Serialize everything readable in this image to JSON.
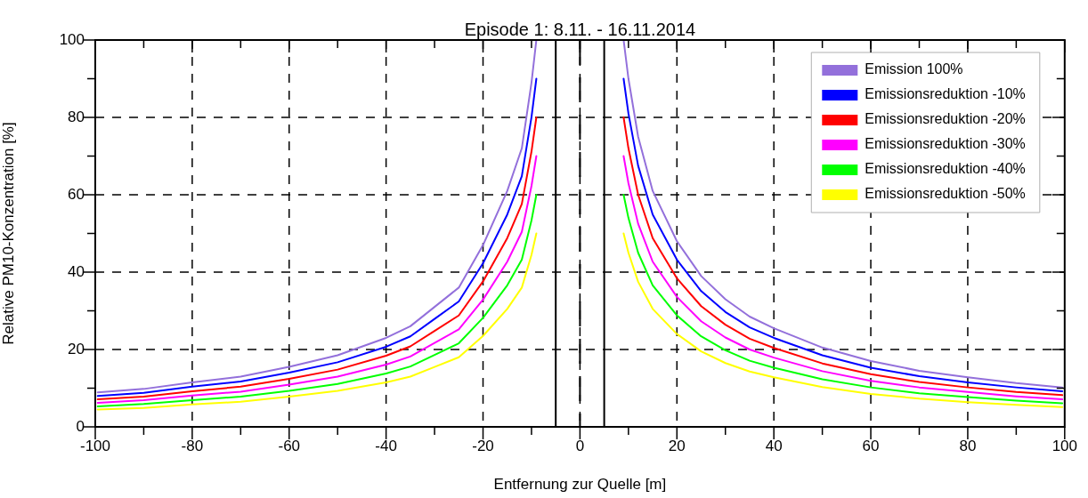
{
  "chart_data": {
    "type": "line",
    "title": "Episode 1: 8.11. - 16.11.2014",
    "xlabel": "Entfernung zur Quelle [m]",
    "ylabel": "Relative PM10-Konzentration [%]",
    "x": [
      -99.5,
      -90,
      -80,
      -70,
      -60,
      -50,
      -40,
      -35,
      -30,
      -25,
      -20,
      -15,
      -12,
      -10,
      -9,
      0,
      9,
      10,
      12,
      15,
      20,
      25,
      30,
      35,
      40,
      50,
      60,
      70,
      80,
      90,
      99.5
    ],
    "series": [
      {
        "name": "Emission 100%",
        "color": "#9370db",
        "values": [
          8.9,
          9.8,
          11.5,
          13,
          15.5,
          18.5,
          23,
          26,
          31,
          36,
          47,
          61,
          72,
          89,
          100,
          null,
          100,
          90,
          75,
          61,
          48,
          39,
          33,
          28.5,
          25.5,
          20.5,
          17,
          14.5,
          12.8,
          11.3,
          10.2
        ]
      },
      {
        "name": "Emissionsreduktion -10%",
        "color": "#0000ff",
        "values": [
          8.0,
          8.8,
          10.4,
          11.7,
          14.0,
          16.7,
          20.7,
          23.4,
          27.9,
          32.4,
          42.3,
          54.9,
          64.8,
          80.1,
          90,
          null,
          90,
          81,
          67.5,
          54.9,
          43.2,
          35.1,
          29.7,
          25.7,
          23.0,
          18.5,
          15.3,
          13.1,
          11.5,
          10.2,
          9.2
        ]
      },
      {
        "name": "Emissionsreduktion -20%",
        "color": "#ff0000",
        "values": [
          7.1,
          7.8,
          9.2,
          10.4,
          12.4,
          14.8,
          18.4,
          20.8,
          24.8,
          28.8,
          37.6,
          48.8,
          57.6,
          71.2,
          80,
          null,
          80,
          72,
          60,
          48.8,
          38.4,
          31.2,
          26.4,
          22.8,
          20.4,
          16.4,
          13.6,
          11.6,
          10.2,
          9.0,
          8.2
        ]
      },
      {
        "name": "Emissionsreduktion -30%",
        "color": "#ff00ff",
        "values": [
          6.2,
          6.9,
          8.1,
          9.1,
          10.9,
          13.0,
          16.1,
          18.2,
          21.7,
          25.2,
          32.9,
          42.7,
          50.4,
          62.3,
          70,
          null,
          70,
          63,
          52.5,
          42.7,
          33.6,
          27.3,
          23.1,
          20.0,
          17.9,
          14.4,
          11.9,
          10.2,
          9.0,
          7.9,
          7.1
        ]
      },
      {
        "name": "Emissionsreduktion -40%",
        "color": "#00ff00",
        "values": [
          5.3,
          5.9,
          6.9,
          7.8,
          9.3,
          11.1,
          13.8,
          15.6,
          18.6,
          21.6,
          28.2,
          36.6,
          43.2,
          53.4,
          60,
          null,
          60,
          54,
          45,
          36.6,
          28.8,
          23.4,
          19.8,
          17.1,
          15.3,
          12.3,
          10.2,
          8.7,
          7.7,
          6.8,
          6.1
        ]
      },
      {
        "name": "Emissionsreduktion -50%",
        "color": "#ffff00",
        "values": [
          4.5,
          4.9,
          5.8,
          6.5,
          7.8,
          9.3,
          11.5,
          13,
          15.5,
          18,
          23.5,
          30.5,
          36,
          44.5,
          50,
          null,
          50,
          45,
          37.5,
          30.5,
          24,
          19.5,
          16.5,
          14.3,
          12.8,
          10.3,
          8.5,
          7.3,
          6.4,
          5.7,
          5.1
        ]
      }
    ],
    "xlim": [
      -100,
      100
    ],
    "ylim": [
      0,
      100
    ],
    "xticks": [
      -100,
      {
        "value": -90,
        "label": null
      },
      -80,
      {
        "value": -70,
        "label": null
      },
      -60,
      {
        "value": -50,
        "label": null
      },
      -40,
      {
        "value": -30,
        "label": null
      },
      -20,
      {
        "value": -10,
        "label": null
      },
      0,
      {
        "value": 10,
        "label": null
      },
      20,
      {
        "value": 30,
        "label": null
      },
      40,
      {
        "value": 50,
        "label": null
      },
      60,
      {
        "value": 70,
        "label": null
      },
      80,
      {
        "value": 90,
        "label": null
      },
      100
    ],
    "yticks": [
      0,
      {
        "value": 10,
        "label": null
      },
      20,
      {
        "value": 30,
        "label": null
      },
      40,
      {
        "value": 50,
        "label": null
      },
      60,
      {
        "value": 70,
        "label": null
      },
      80,
      {
        "value": 90,
        "label": null
      },
      100
    ],
    "ref_lines": [
      {
        "axis": "x",
        "value": -5,
        "color": "#000000",
        "line_style": "solid"
      },
      {
        "axis": "x",
        "value": 0,
        "color": "#000000",
        "line_style": "dashed"
      },
      {
        "axis": "x",
        "value": 5,
        "color": "#000000",
        "line_style": "solid"
      }
    ],
    "grid": true,
    "legend": "top right",
    "marker": "none",
    "line_style": "solid"
  }
}
